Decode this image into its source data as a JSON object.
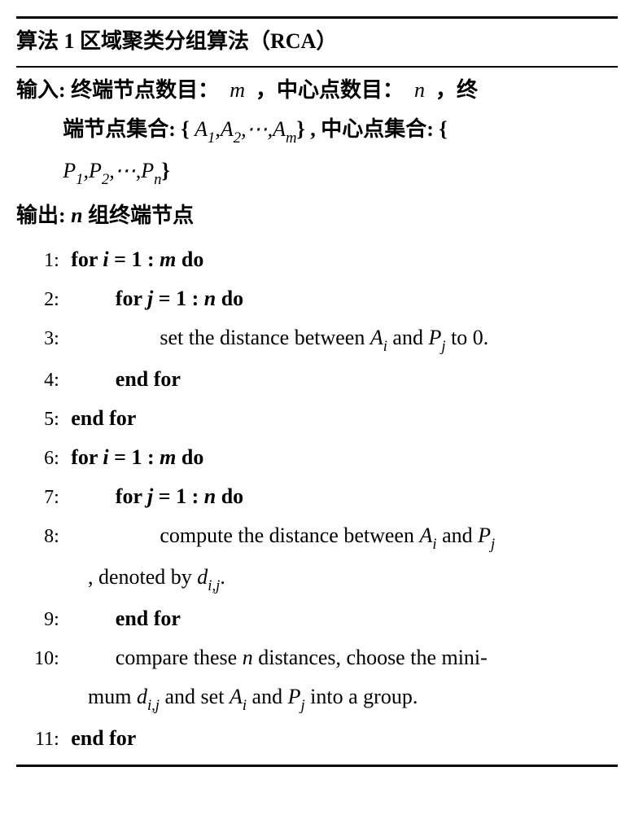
{
  "header": {
    "algo_label": "算法 1",
    "title": "区域聚类分组算法（RCA）"
  },
  "input": {
    "label": "输入:",
    "line1_a": "终端节点数目：",
    "line1_b": "，中心点数目：",
    "line1_c": "，终",
    "line2_a": "端节点集合: {",
    "line2_b": "} , 中心点集合: {",
    "line3_b": "}",
    "var_m": "m",
    "var_n": "n",
    "setA": "A₁,A₂,⋯,Aₘ",
    "setP": "P₁,P₂,⋯,Pₙ"
  },
  "output": {
    "label": "输出:",
    "text_a": "组终端节点",
    "var_n": "n"
  },
  "steps": [
    {
      "n": "1:",
      "indent": 1,
      "html": "for <span class='math-i'>i</span> = 1 : <span class='math-i'>m</span> do"
    },
    {
      "n": "2:",
      "indent": 2,
      "html": "for <span class='math-i'>j</span> = 1 : <span class='math-i'>n</span> do"
    },
    {
      "n": "3:",
      "indent": 3,
      "html": "<span class='rm'>set the distance between <span class='math-i'>A<span class='sub'>i</span></span> and <span class='math-i'>P<span class='sub'>j</span></span> to 0.</span>"
    },
    {
      "n": "4:",
      "indent": 2,
      "html": "end for"
    },
    {
      "n": "5:",
      "indent": 1,
      "html": "end for"
    },
    {
      "n": "6:",
      "indent": 1,
      "html": "for <span class='math-i'>i</span> = 1 : <span class='math-i'>m</span> do"
    },
    {
      "n": "7:",
      "indent": 2,
      "html": "for <span class='math-i'>j</span> = 1 : <span class='math-i'>n</span> do"
    },
    {
      "n": "8:",
      "indent": 3,
      "html": "<span class='rm'>compute the distance between <span class='math-i'>A<span class='sub'>i</span></span> and <span class='math-i'>P<span class='sub'>j</span></span></span>"
    },
    {
      "cont": true,
      "html": ", denoted by <span class='math-i'>d<span class='sub'>i,j</span></span>."
    },
    {
      "n": "9:",
      "indent": 2,
      "html": "end for"
    },
    {
      "n": "10:",
      "indent": 2,
      "html": "<span class='rm'>compare these <span class='math-i'>n</span> distances, choose the mini-</span>"
    },
    {
      "cont": true,
      "html": "mum <span class='math-i'>d<span class='sub'>i,j</span></span> and set <span class='math-i'>A<span class='sub'>i</span></span> and <span class='math-i'>P<span class='sub'>j</span></span> into a group."
    },
    {
      "n": "11:",
      "indent": 1,
      "html": "end for"
    }
  ],
  "style": {
    "font_size_pt": 20,
    "line_height": 1.85,
    "text_color": "#000000",
    "background_color": "#ffffff",
    "rule_color": "#000000",
    "rule_top_width": 3,
    "rule_mid_width": 2,
    "rule_bot_width": 3,
    "indent_em": 2.1
  }
}
